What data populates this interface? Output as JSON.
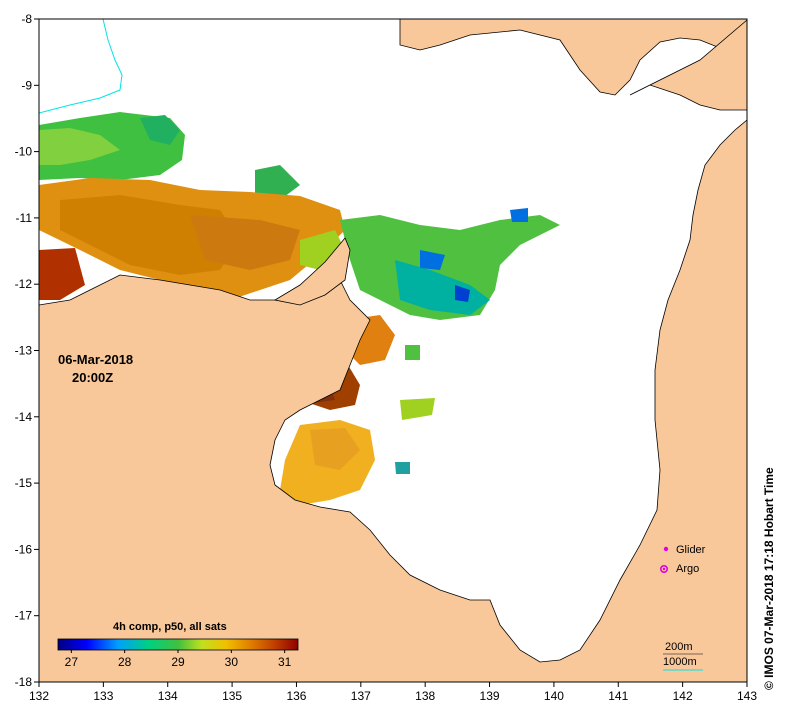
{
  "map": {
    "x_ticks": [
      "132",
      "133",
      "134",
      "135",
      "136",
      "137",
      "138",
      "139",
      "140",
      "141",
      "142",
      "143"
    ],
    "y_ticks": [
      "-8",
      "-9",
      "-10",
      "-11",
      "-12",
      "-13",
      "-14",
      "-15",
      "-16",
      "-17",
      "-18"
    ],
    "date": "06-Mar-2018",
    "time": "20:00Z",
    "credit": "© IMOS 07-Mar-2018 17:18 Hobart Time",
    "colors": {
      "land": "#f9c89a",
      "ocean": "#ffffff",
      "contour": "#00e5e5",
      "marker": "#e000e0"
    }
  },
  "legend": {
    "glider_label": "Glider",
    "argo_label": "Argo"
  },
  "colorbar": {
    "title": "4h comp, p50, all sats",
    "labels": [
      "27",
      "28",
      "29",
      "30",
      "31"
    ],
    "range": [
      26.75,
      31.25
    ]
  },
  "contours": {
    "label_200m": "200m",
    "label_1000m": "1000m"
  }
}
